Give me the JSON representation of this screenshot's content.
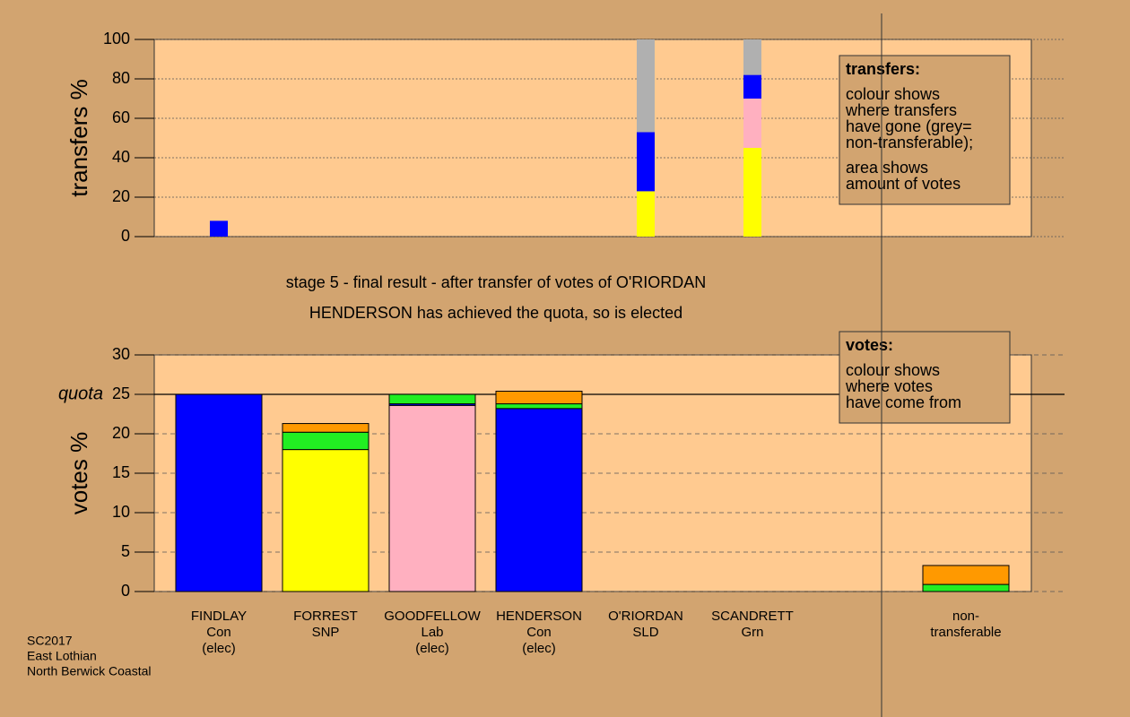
{
  "chart_data": [
    {
      "type": "bar",
      "stacked": true,
      "y_label": "transfers %",
      "ylim": [
        0,
        100
      ],
      "yticks": [
        0,
        20,
        40,
        60,
        80,
        100
      ],
      "grid": true,
      "series": [
        {
          "color": "#ffff00",
          "values": [
            0,
            0,
            0,
            0,
            23,
            45
          ]
        },
        {
          "color": "#ffb0c0",
          "values": [
            0,
            0,
            0,
            0,
            0,
            25
          ]
        },
        {
          "color": "#0000ff",
          "values": [
            8,
            0,
            0,
            0,
            30,
            12
          ]
        },
        {
          "color": "#b0b0b0",
          "values": [
            0,
            0,
            0,
            0,
            47,
            18
          ]
        }
      ],
      "legend": {
        "title": "transfers:",
        "paragraphs": [
          [
            "colour shows",
            "where transfers",
            "have gone (grey=",
            "non-transferable);"
          ],
          [
            "area shows",
            "amount of votes"
          ]
        ]
      }
    },
    {
      "type": "bar",
      "stacked": true,
      "title": [
        "stage 5 - final result - after transfer of votes of O'RIORDAN",
        "HENDERSON has achieved the quota, so is elected"
      ],
      "y_label": "votes %",
      "ylim": [
        0,
        30
      ],
      "yticks": [
        0,
        5,
        10,
        15,
        20,
        25,
        30
      ],
      "grid": true,
      "quota": {
        "value": 25,
        "label": "quota"
      },
      "categories": [
        [
          "FINDLAY",
          "Con",
          "(elec)"
        ],
        [
          "FORREST",
          "SNP"
        ],
        [
          "GOODFELLOW",
          "Lab",
          "(elec)"
        ],
        [
          "HENDERSON",
          "Con",
          "(elec)"
        ],
        [
          "O'RIORDAN",
          "SLD"
        ],
        [
          "SCANDRETT",
          "Grn"
        ],
        null,
        [
          "non-",
          "transferable"
        ]
      ],
      "series": [
        {
          "color": "#ffff00",
          "values": [
            0,
            18,
            0,
            0,
            0,
            0,
            null,
            0
          ]
        },
        {
          "color": "#ffb0c0",
          "values": [
            0,
            0,
            23.6,
            0,
            0,
            0,
            null,
            0
          ]
        },
        {
          "color": "#0000ff",
          "values": [
            25,
            0,
            0.2,
            23.2,
            0,
            0,
            null,
            0
          ]
        },
        {
          "color": "#22ee22",
          "values": [
            0,
            2.2,
            1.2,
            0.6,
            0,
            0,
            null,
            0.9
          ]
        },
        {
          "color": "#ff9900",
          "values": [
            0,
            1.1,
            0,
            1.6,
            0,
            0,
            null,
            2.4
          ]
        }
      ],
      "legend": {
        "title": "votes:",
        "paragraphs": [
          [
            "colour shows",
            "where votes",
            "have come from"
          ]
        ]
      }
    }
  ],
  "footer": [
    "SC2017",
    "East Lothian",
    "North Berwick Coastal"
  ]
}
